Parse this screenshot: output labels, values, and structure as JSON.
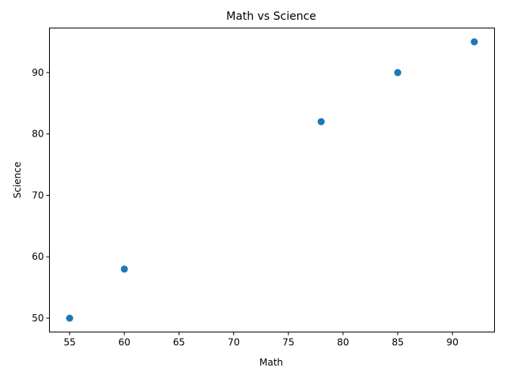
{
  "chart_data": {
    "type": "scatter",
    "title": "Math vs Science",
    "xlabel": "Math",
    "ylabel": "Science",
    "x": [
      55,
      60,
      78,
      85,
      92
    ],
    "y": [
      50,
      58,
      82,
      90,
      95
    ],
    "xlim": [
      53.15,
      93.85
    ],
    "ylim": [
      47.75,
      97.25
    ],
    "xticks": [
      55,
      60,
      65,
      70,
      75,
      80,
      85,
      90
    ],
    "yticks": [
      50,
      60,
      70,
      80,
      90
    ],
    "grid": false,
    "marker_color": "#1f77b4"
  }
}
